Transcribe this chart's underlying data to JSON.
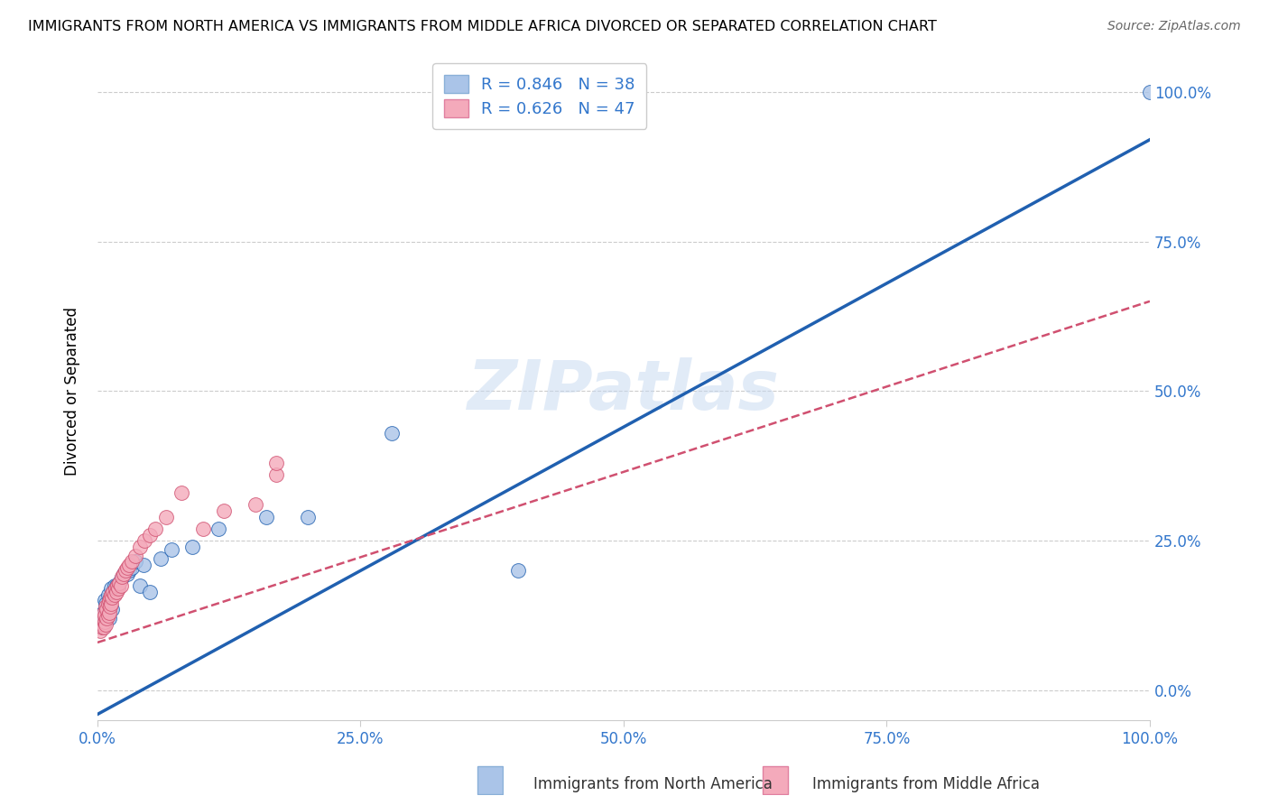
{
  "title": "IMMIGRANTS FROM NORTH AMERICA VS IMMIGRANTS FROM MIDDLE AFRICA DIVORCED OR SEPARATED CORRELATION CHART",
  "source": "Source: ZipAtlas.com",
  "ylabel": "Divorced or Separated",
  "blue_R": 0.846,
  "blue_N": 38,
  "pink_R": 0.626,
  "pink_N": 47,
  "blue_color": "#aac4e8",
  "pink_color": "#f4aabb",
  "blue_line_color": "#2060b0",
  "pink_line_color": "#d05070",
  "grid_color": "#cccccc",
  "watermark": "ZIPatlas",
  "footer_label_blue": "Immigrants from North America",
  "footer_label_pink": "Immigrants from Middle Africa",
  "blue_x": [
    0.003,
    0.004,
    0.005,
    0.005,
    0.006,
    0.007,
    0.007,
    0.008,
    0.008,
    0.009,
    0.01,
    0.01,
    0.011,
    0.012,
    0.013,
    0.014,
    0.015,
    0.016,
    0.018,
    0.02,
    0.022,
    0.025,
    0.028,
    0.03,
    0.033,
    0.036,
    0.04,
    0.044,
    0.05,
    0.06,
    0.07,
    0.09,
    0.115,
    0.16,
    0.2,
    0.28,
    0.4,
    1.0
  ],
  "blue_y": [
    0.11,
    0.12,
    0.105,
    0.13,
    0.115,
    0.125,
    0.15,
    0.135,
    0.145,
    0.13,
    0.14,
    0.16,
    0.12,
    0.155,
    0.17,
    0.135,
    0.165,
    0.175,
    0.175,
    0.175,
    0.185,
    0.195,
    0.195,
    0.2,
    0.205,
    0.215,
    0.175,
    0.21,
    0.165,
    0.22,
    0.235,
    0.24,
    0.27,
    0.29,
    0.29,
    0.43,
    0.2,
    1.0
  ],
  "pink_x": [
    0.003,
    0.004,
    0.005,
    0.005,
    0.006,
    0.006,
    0.007,
    0.007,
    0.008,
    0.008,
    0.009,
    0.009,
    0.01,
    0.01,
    0.011,
    0.011,
    0.012,
    0.012,
    0.013,
    0.013,
    0.014,
    0.015,
    0.016,
    0.017,
    0.018,
    0.019,
    0.02,
    0.021,
    0.022,
    0.023,
    0.025,
    0.027,
    0.028,
    0.03,
    0.033,
    0.036,
    0.04,
    0.045,
    0.05,
    0.055,
    0.065,
    0.08,
    0.1,
    0.12,
    0.15,
    0.17,
    0.17
  ],
  "pink_y": [
    0.1,
    0.105,
    0.11,
    0.12,
    0.105,
    0.13,
    0.115,
    0.125,
    0.11,
    0.14,
    0.12,
    0.135,
    0.125,
    0.145,
    0.13,
    0.15,
    0.14,
    0.155,
    0.145,
    0.16,
    0.155,
    0.165,
    0.16,
    0.17,
    0.165,
    0.175,
    0.17,
    0.18,
    0.175,
    0.19,
    0.195,
    0.2,
    0.205,
    0.21,
    0.215,
    0.225,
    0.24,
    0.25,
    0.26,
    0.27,
    0.29,
    0.33,
    0.27,
    0.3,
    0.31,
    0.36,
    0.38
  ],
  "blue_line_x": [
    0.0,
    1.0
  ],
  "blue_line_y": [
    -0.04,
    0.92
  ],
  "pink_line_x": [
    0.0,
    1.0
  ],
  "pink_line_y": [
    0.08,
    0.65
  ],
  "xlim": [
    0.0,
    1.0
  ],
  "ylim": [
    -0.05,
    1.05
  ],
  "yticks": [
    0.0,
    0.25,
    0.5,
    0.75,
    1.0
  ],
  "xticks": [
    0.0,
    0.25,
    0.5,
    0.75,
    1.0
  ],
  "tick_color": "#3377cc"
}
